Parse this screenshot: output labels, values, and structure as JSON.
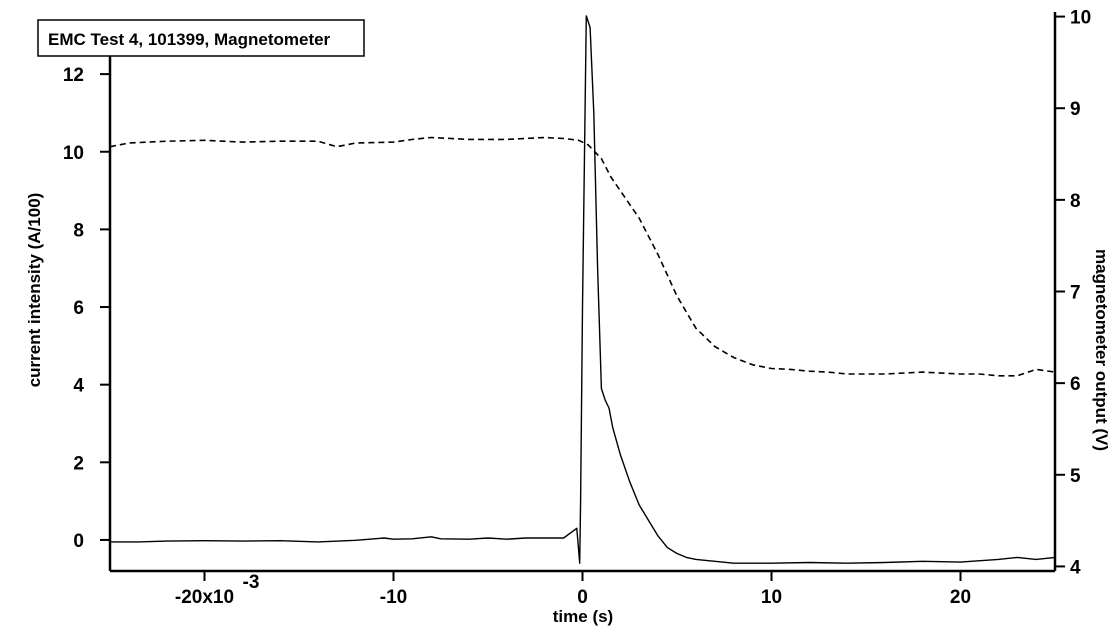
{
  "chart_data": {
    "type": "line",
    "title": "EMC Test 4, 101399, Magnetometer",
    "xlabel": "time (s)",
    "ylabel_left": "current intensity (A/100)",
    "ylabel_right": "magnetometer output (V)",
    "xlim": [
      -0.025,
      0.025
    ],
    "ylim_left": [
      -0.8,
      13.6
    ],
    "ylim_right": [
      3.95,
      10.05
    ],
    "x_ticks": [
      -0.02,
      -0.01,
      0,
      0.01,
      0.02
    ],
    "x_tick_labels": [
      "-20x10",
      "-10",
      "0",
      "10",
      "20"
    ],
    "x_tick_exponent": "-3",
    "y_left_ticks": [
      0,
      2,
      4,
      6,
      8,
      10,
      12
    ],
    "y_left_tick_labels": [
      "0",
      "2",
      "4",
      "6",
      "8",
      "10",
      "12"
    ],
    "y_right_ticks": [
      4,
      5,
      6,
      7,
      8,
      9,
      10
    ],
    "y_right_tick_labels": [
      "4",
      "5",
      "6",
      "7",
      "8",
      "9",
      "10"
    ],
    "grid": false,
    "series": [
      {
        "axis": "left",
        "style": "solid",
        "x": [
          -0.025,
          -0.0235,
          -0.022,
          -0.02,
          -0.018,
          -0.016,
          -0.014,
          -0.012,
          -0.0105,
          -0.01,
          -0.009,
          -0.008,
          -0.0075,
          -0.006,
          -0.005,
          -0.004,
          -0.003,
          -0.002,
          -0.001,
          -0.0003,
          -0.00015,
          -0.0001,
          0.0,
          0.0002,
          0.0004,
          0.0006,
          0.0008,
          0.001,
          0.0012,
          0.0014,
          0.0016,
          0.002,
          0.0025,
          0.003,
          0.0035,
          0.004,
          0.0045,
          0.005,
          0.0055,
          0.006,
          0.007,
          0.008,
          0.01,
          0.012,
          0.014,
          0.016,
          0.018,
          0.02,
          0.022,
          0.023,
          0.024,
          0.025
        ],
        "y": [
          -0.05,
          -0.05,
          -0.03,
          -0.02,
          -0.03,
          -0.02,
          -0.05,
          -0.01,
          0.05,
          0.02,
          0.03,
          0.08,
          0.03,
          0.02,
          0.05,
          0.02,
          0.05,
          0.05,
          0.05,
          0.3,
          -0.6,
          1.0,
          6.0,
          13.5,
          13.2,
          11.0,
          7.0,
          3.9,
          3.6,
          3.4,
          2.9,
          2.2,
          1.5,
          0.9,
          0.5,
          0.1,
          -0.2,
          -0.35,
          -0.45,
          -0.5,
          -0.55,
          -0.6,
          -0.6,
          -0.58,
          -0.6,
          -0.58,
          -0.55,
          -0.57,
          -0.5,
          -0.45,
          -0.5,
          -0.45
        ]
      },
      {
        "axis": "right",
        "style": "dashed",
        "x": [
          -0.025,
          -0.024,
          -0.022,
          -0.02,
          -0.018,
          -0.016,
          -0.014,
          -0.013,
          -0.012,
          -0.01,
          -0.009,
          -0.008,
          -0.006,
          -0.004,
          -0.002,
          -0.001,
          -0.0002,
          0.0003,
          0.001,
          0.0015,
          0.002,
          0.003,
          0.004,
          0.005,
          0.006,
          0.007,
          0.008,
          0.009,
          0.01,
          0.011,
          0.012,
          0.013,
          0.014,
          0.016,
          0.018,
          0.02,
          0.021,
          0.022,
          0.023,
          0.024,
          0.025
        ],
        "y": [
          8.58,
          8.62,
          8.64,
          8.65,
          8.63,
          8.64,
          8.64,
          8.58,
          8.62,
          8.63,
          8.66,
          8.68,
          8.66,
          8.66,
          8.68,
          8.67,
          8.65,
          8.6,
          8.45,
          8.25,
          8.1,
          7.8,
          7.4,
          6.95,
          6.6,
          6.4,
          6.28,
          6.2,
          6.16,
          6.15,
          6.13,
          6.12,
          6.1,
          6.1,
          6.12,
          6.1,
          6.1,
          6.08,
          6.08,
          6.15,
          6.12
        ]
      }
    ]
  }
}
